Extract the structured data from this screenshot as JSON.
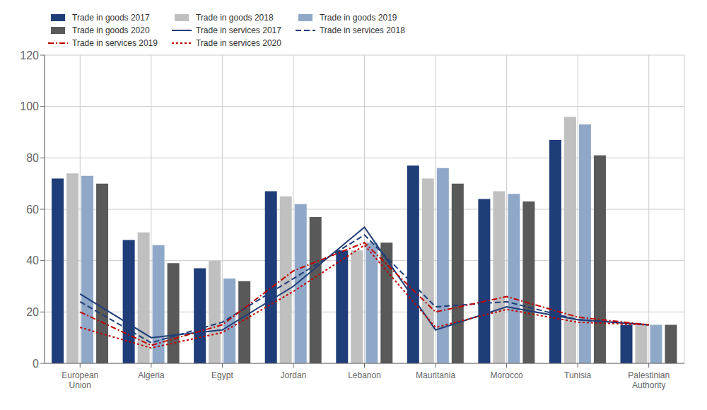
{
  "chart_data": {
    "type": "bar",
    "categories": [
      "European\nUnion",
      "Algeria",
      "Egypt",
      "Jordan",
      "Lebanon",
      "Mauritania",
      "Morocco",
      "Tunisia",
      "Palestinian\nAuthority"
    ],
    "series": [
      {
        "name": "Trade in goods 2017",
        "type": "bar",
        "color": "#1F3D78",
        "values": [
          72,
          48,
          37,
          67,
          44,
          77,
          64,
          87,
          15
        ]
      },
      {
        "name": "Trade in goods 2018",
        "type": "bar",
        "color": "#C0C0C0",
        "values": [
          74,
          51,
          40,
          65,
          44,
          72,
          67,
          96,
          15
        ]
      },
      {
        "name": "Trade in goods 2019",
        "type": "bar",
        "color": "#8FA8C8",
        "values": [
          73,
          46,
          33,
          62,
          47,
          76,
          66,
          93,
          15
        ]
      },
      {
        "name": "Trade in goods 2020",
        "type": "bar",
        "color": "#595959",
        "values": [
          70,
          39,
          32,
          57,
          47,
          70,
          63,
          81,
          15
        ]
      },
      {
        "name": "Trade in services 2017",
        "type": "line",
        "color": "#1F3D78",
        "line_style": "solid",
        "values": [
          27,
          10,
          13,
          30,
          53,
          13,
          22,
          17,
          15
        ]
      },
      {
        "name": "Trade in services 2018",
        "type": "line",
        "color": "#1F3D78",
        "line_style": "dashed",
        "values": [
          24,
          8,
          16,
          33,
          50,
          22,
          24,
          17,
          15
        ]
      },
      {
        "name": "Trade in services 2019",
        "type": "line",
        "color": "#C00000",
        "line_style": "dashdot",
        "values": [
          20,
          7,
          15,
          36,
          47,
          20,
          26,
          18,
          15
        ]
      },
      {
        "name": "Trade in services 2020",
        "type": "line",
        "color": "#C00000",
        "line_style": "dotted",
        "values": [
          14,
          6,
          12,
          28,
          46,
          14,
          21,
          16,
          15
        ]
      }
    ],
    "ylim": [
      0,
      120
    ],
    "yticks": [
      0,
      20,
      40,
      60,
      80,
      100,
      120
    ],
    "grid": true,
    "legend": "upper left"
  }
}
